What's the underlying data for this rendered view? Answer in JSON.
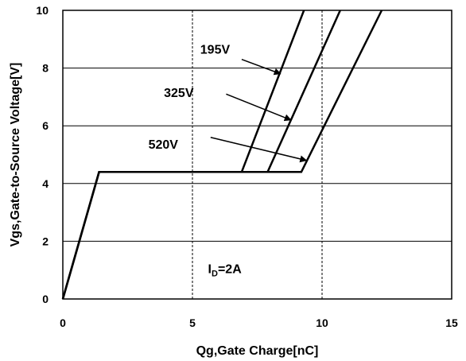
{
  "chart_data": {
    "type": "line",
    "xlabel": "Qg,Gate Charge[nC]",
    "ylabel": "Vgs,Gate-to-Source Voltage[V]",
    "xlim": [
      0,
      15
    ],
    "ylim": [
      0,
      10
    ],
    "xticks": [
      0,
      5,
      10,
      15
    ],
    "yticks": [
      0,
      2,
      4,
      6,
      8,
      10
    ],
    "grid": {
      "horizontal": "solid",
      "vertical": "dashed"
    },
    "series": [
      {
        "name": "195V",
        "points": [
          [
            0,
            0
          ],
          [
            1.4,
            4.4
          ],
          [
            6.9,
            4.4
          ],
          [
            9.3,
            10
          ]
        ]
      },
      {
        "name": "325V",
        "points": [
          [
            0,
            0
          ],
          [
            1.4,
            4.4
          ],
          [
            7.9,
            4.4
          ],
          [
            10.7,
            10
          ]
        ]
      },
      {
        "name": "520V",
        "points": [
          [
            0,
            0
          ],
          [
            1.4,
            4.4
          ],
          [
            9.2,
            4.4
          ],
          [
            12.3,
            10
          ]
        ]
      }
    ],
    "annotations": [
      {
        "text": "195V",
        "label_at": [
          5.3,
          8.5
        ],
        "arrow_from": [
          6.9,
          8.3
        ],
        "arrow_to": [
          8.4,
          7.8
        ]
      },
      {
        "text": "325V",
        "label_at": [
          3.9,
          7.0
        ],
        "arrow_from": [
          6.3,
          7.1
        ],
        "arrow_to": [
          8.8,
          6.2
        ]
      },
      {
        "text": "520V",
        "label_at": [
          3.3,
          5.2
        ],
        "arrow_from": [
          5.7,
          5.6
        ],
        "arrow_to": [
          9.4,
          4.8
        ]
      }
    ],
    "condition": {
      "base": "I",
      "subscript": "D",
      "suffix": "=2A",
      "at": [
        5.6,
        0.9
      ]
    }
  }
}
